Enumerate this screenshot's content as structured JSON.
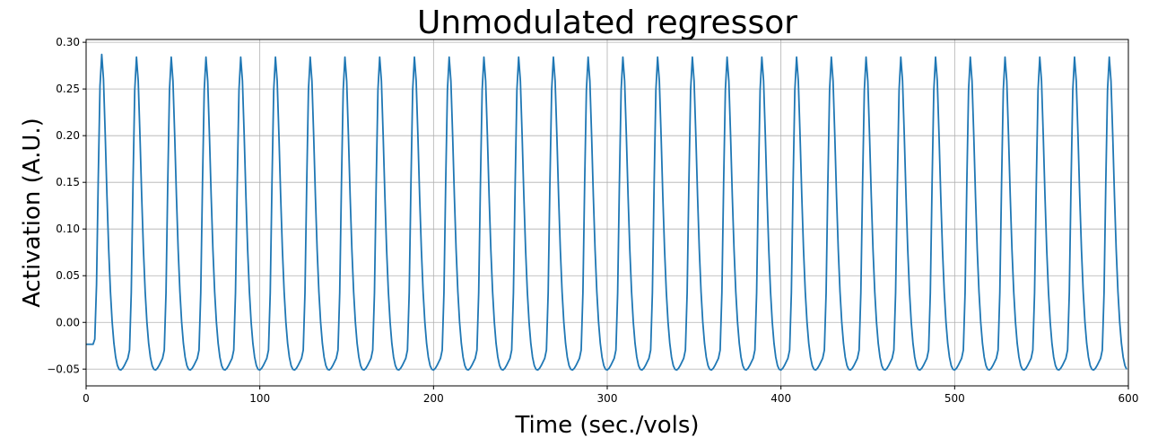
{
  "chart_data": {
    "type": "line",
    "title": "Unmodulated regressor",
    "xlabel": "Time (sec./vols)",
    "ylabel": "Activation (A.U.)",
    "xlim": [
      0,
      600
    ],
    "ylim": [
      -0.068,
      0.303
    ],
    "xticks": [
      0,
      100,
      200,
      300,
      400,
      500,
      600
    ],
    "xtick_labels": [
      "0",
      "100",
      "200",
      "300",
      "400",
      "500",
      "600"
    ],
    "yticks": [
      -0.05,
      0.0,
      0.05,
      0.1,
      0.15,
      0.2,
      0.25,
      0.3
    ],
    "ytick_labels": [
      "−0.05",
      "0.00",
      "0.05",
      "0.10",
      "0.15",
      "0.20",
      "0.25",
      "0.30"
    ],
    "grid": true,
    "line_color": "#1f77b4",
    "series": [
      {
        "onsets_start": 4,
        "onsets_period": 20,
        "onsets_count": 30,
        "sampling_step": 1,
        "x_range": [
          0,
          599
        ],
        "peak_value": 0.287,
        "trough_value": -0.051
      }
    ]
  }
}
